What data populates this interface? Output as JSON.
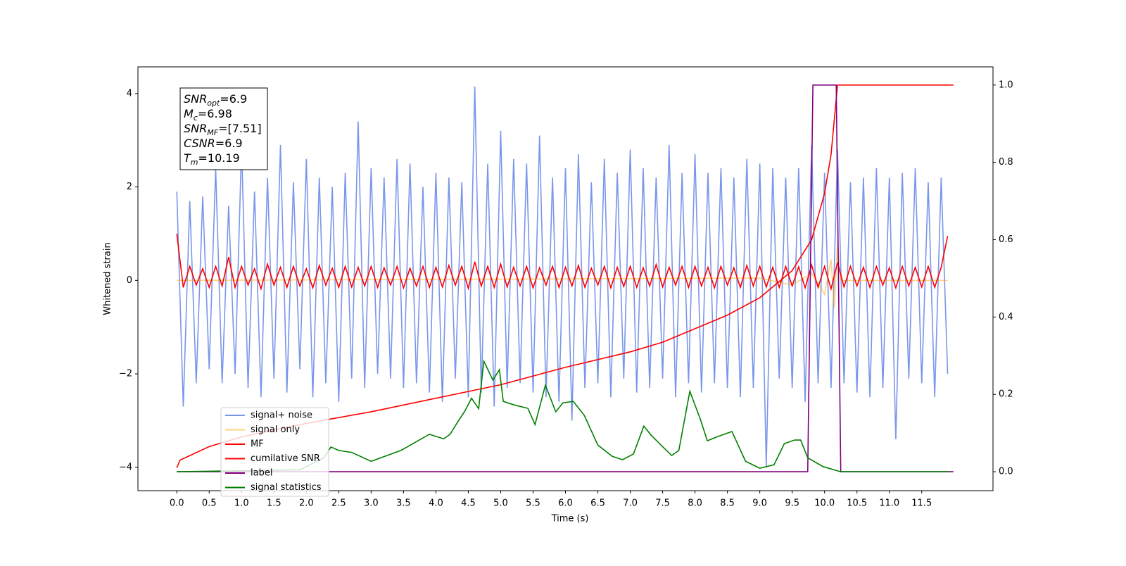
{
  "chart_data": {
    "type": "line",
    "xlabel": "Time (s)",
    "ylabel": "Whitened strain",
    "xlim": [
      -0.6,
      12.6
    ],
    "ylim": [
      -4.5,
      4.57
    ],
    "y2lim": [
      -0.049,
      1.047
    ],
    "xticks": [
      {
        "value": 0,
        "label": "0.0"
      },
      {
        "value": 0.5,
        "label": "0.5"
      },
      {
        "value": 1,
        "label": "1.0"
      },
      {
        "value": 1.5,
        "label": "1.5"
      },
      {
        "value": 2,
        "label": "2.0"
      },
      {
        "value": 2.5,
        "label": "2.5"
      },
      {
        "value": 3,
        "label": "3.0"
      },
      {
        "value": 3.5,
        "label": "3.5"
      },
      {
        "value": 4,
        "label": "4.0"
      },
      {
        "value": 4.5,
        "label": "4.5"
      },
      {
        "value": 5,
        "label": "5.0"
      },
      {
        "value": 5.5,
        "label": "5.5"
      },
      {
        "value": 6,
        "label": "6.0"
      },
      {
        "value": 6.5,
        "label": "6.5"
      },
      {
        "value": 7,
        "label": "7.0"
      },
      {
        "value": 7.5,
        "label": "7.5"
      },
      {
        "value": 8,
        "label": "8.0"
      },
      {
        "value": 8.5,
        "label": "8.5"
      },
      {
        "value": 9,
        "label": "9.0"
      },
      {
        "value": 9.5,
        "label": "9.5"
      },
      {
        "value": 10,
        "label": "10.0"
      },
      {
        "value": 10.5,
        "label": "10.5"
      },
      {
        "value": 11,
        "label": "11.0"
      },
      {
        "value": 11.5,
        "label": "11.5"
      }
    ],
    "yticks": [
      {
        "value": -4,
        "label": "−4"
      },
      {
        "value": -2,
        "label": "−2"
      },
      0,
      2,
      4
    ],
    "y2ticks": [
      {
        "value": 0,
        "label": "0.0"
      },
      {
        "value": 0.2,
        "label": "0.2"
      },
      {
        "value": 0.4,
        "label": "0.4"
      },
      {
        "value": 0.6,
        "label": "0.6"
      },
      {
        "value": 0.8,
        "label": "0.8"
      },
      {
        "value": 1,
        "label": "1.0"
      }
    ],
    "legend": "lower left",
    "annotation": [
      {
        "base": "SNR",
        "sub": "opt",
        "text": "=6.9"
      },
      {
        "base": "M",
        "sub": "c",
        "text": "=6.98"
      },
      {
        "base": "SNR",
        "sub": "MF",
        "text": "=[7.51]"
      },
      {
        "base": "CSNR",
        "sub": null,
        "text": "=6.9"
      },
      {
        "base": "T",
        "sub": "m",
        "text": "=10.19"
      }
    ],
    "series": [
      {
        "name": "signal+ noise",
        "color": "#4169e1",
        "alpha": 0.7,
        "x": [
          0,
          0.1,
          0.2,
          0.3,
          0.4,
          0.5,
          0.6,
          0.7,
          0.8,
          0.9,
          1,
          1.1,
          1.2,
          1.3,
          1.4,
          1.5,
          1.6,
          1.7,
          1.8,
          1.9,
          2,
          2.1,
          2.2,
          2.3,
          2.4,
          2.5,
          2.6,
          2.7,
          2.8,
          2.9,
          3,
          3.1,
          3.2,
          3.3,
          3.4,
          3.5,
          3.6,
          3.7,
          3.8,
          3.9,
          4,
          4.1,
          4.2,
          4.3,
          4.4,
          4.5,
          4.6,
          4.7,
          4.8,
          4.9,
          5,
          5.1,
          5.2,
          5.3,
          5.4,
          5.5,
          5.6,
          5.7,
          5.8,
          5.9,
          6,
          6.1,
          6.2,
          6.3,
          6.4,
          6.5,
          6.6,
          6.7,
          6.8,
          6.9,
          7,
          7.1,
          7.2,
          7.3,
          7.4,
          7.5,
          7.6,
          7.7,
          7.8,
          7.9,
          8,
          8.1,
          8.2,
          8.3,
          8.4,
          8.5,
          8.6,
          8.7,
          8.8,
          8.9,
          9,
          9.1,
          9.2,
          9.3,
          9.4,
          9.5,
          9.6,
          9.7,
          9.8,
          9.9,
          10,
          10.1,
          10.2,
          10.3,
          10.4,
          10.5,
          10.6,
          10.7,
          10.8,
          10.9,
          11,
          11.1,
          11.2,
          11.3,
          11.4,
          11.5,
          11.6,
          11.7,
          11.8,
          11.9
        ],
        "values": [
          1.9,
          -2.7,
          1.7,
          -2.2,
          1.8,
          -1.9,
          2.4,
          -2.2,
          1.6,
          -2.0,
          2.9,
          -2.3,
          1.9,
          -2.5,
          2.2,
          -2.1,
          2.9,
          -2.4,
          2.1,
          -1.9,
          2.6,
          -2.5,
          2.2,
          -2.2,
          2.0,
          -2.6,
          2.3,
          -2.1,
          3.4,
          -2.3,
          2.4,
          -2.0,
          2.2,
          -2.1,
          2.6,
          -2.3,
          2.5,
          -2.2,
          2.0,
          -2.4,
          2.3,
          -2.6,
          2.2,
          -2.1,
          2.1,
          -2.5,
          4.15,
          -2.4,
          2.5,
          -2.7,
          3.2,
          -2.3,
          2.6,
          -2.2,
          2.5,
          -2.4,
          3.1,
          -2.5,
          2.2,
          -2.6,
          2.4,
          -3.0,
          2.7,
          -2.3,
          2.1,
          -2.2,
          2.6,
          -2.5,
          2.3,
          -2.1,
          2.8,
          -2.4,
          2.4,
          -2.3,
          2.2,
          -2.1,
          2.9,
          -2.5,
          2.3,
          -2.2,
          2.7,
          -2.4,
          2.3,
          -2.2,
          2.4,
          -2.3,
          2.2,
          -2.5,
          2.6,
          -2.3,
          2.5,
          -4.0,
          2.4,
          -2.1,
          2.2,
          -2.3,
          2.4,
          -2.6,
          2.9,
          -2.2,
          2.3,
          -2.3,
          2.8,
          -2.2,
          2.1,
          -2.4,
          2.2,
          -2.5,
          2.4,
          -2.3,
          2.2,
          -3.4,
          2.3,
          -2.1,
          2.4,
          -2.2,
          2.1,
          -2.5,
          2.2,
          -2.0
        ]
      },
      {
        "name": "signal only",
        "color": "#ffa500",
        "alpha": 0.5,
        "x": [
          0,
          9.0,
          9.5,
          9.8,
          10.0,
          10.1,
          10.15,
          10.2,
          10.25,
          11.9
        ],
        "values": [
          0,
          0.05,
          -0.1,
          0.15,
          -0.3,
          0.45,
          -0.6,
          0.8,
          0,
          0
        ]
      },
      {
        "name": "MF",
        "color": "#ff0000",
        "alpha": 1,
        "x": [
          0,
          0.1,
          0.2,
          0.3,
          0.4,
          0.5,
          0.6,
          0.7,
          0.8,
          0.9,
          1,
          1.1,
          1.2,
          1.3,
          1.4,
          1.5,
          1.6,
          1.7,
          1.8,
          1.9,
          2,
          2.1,
          2.2,
          2.3,
          2.4,
          2.5,
          2.6,
          2.7,
          2.8,
          2.9,
          3,
          3.1,
          3.2,
          3.3,
          3.4,
          3.5,
          3.6,
          3.7,
          3.8,
          3.9,
          4,
          4.1,
          4.2,
          4.3,
          4.4,
          4.5,
          4.6,
          4.7,
          4.8,
          4.9,
          5,
          5.1,
          5.2,
          5.3,
          5.4,
          5.5,
          5.6,
          5.7,
          5.8,
          5.9,
          6,
          6.1,
          6.2,
          6.3,
          6.4,
          6.5,
          6.6,
          6.7,
          6.8,
          6.9,
          7,
          7.1,
          7.2,
          7.3,
          7.4,
          7.5,
          7.6,
          7.7,
          7.8,
          7.9,
          8,
          8.1,
          8.2,
          8.3,
          8.4,
          8.5,
          8.6,
          8.7,
          8.8,
          8.9,
          9,
          9.1,
          9.2,
          9.3,
          9.4,
          9.5,
          9.6,
          9.7,
          9.8,
          9.9,
          10,
          10.1,
          10.2,
          10.3,
          10.4,
          10.5,
          10.6,
          10.7,
          10.8,
          10.9,
          11,
          11.1,
          11.2,
          11.3,
          11.4,
          11.5,
          11.6,
          11.7,
          11.8,
          11.9
        ],
        "values": [
          1.0,
          -0.15,
          0.3,
          -0.1,
          0.25,
          -0.15,
          0.3,
          -0.12,
          0.5,
          -0.15,
          0.3,
          -0.1,
          0.25,
          -0.18,
          0.35,
          -0.1,
          0.28,
          -0.15,
          0.3,
          -0.12,
          0.25,
          -0.16,
          0.32,
          -0.1,
          0.26,
          -0.15,
          0.3,
          -0.14,
          0.28,
          -0.12,
          0.3,
          -0.15,
          0.27,
          -0.1,
          0.3,
          -0.16,
          0.26,
          -0.12,
          0.3,
          -0.15,
          0.28,
          -0.14,
          0.32,
          -0.1,
          0.3,
          -0.17,
          0.4,
          -0.12,
          0.3,
          -0.15,
          0.35,
          -0.14,
          0.28,
          -0.12,
          0.3,
          -0.16,
          0.27,
          -0.1,
          0.3,
          -0.15,
          0.28,
          -0.12,
          0.32,
          -0.15,
          0.26,
          -0.1,
          0.3,
          -0.16,
          0.28,
          -0.13,
          0.3,
          -0.15,
          0.27,
          -0.12,
          0.34,
          -0.14,
          0.28,
          -0.1,
          0.3,
          -0.15,
          0.3,
          -0.12,
          0.28,
          -0.16,
          0.3,
          -0.1,
          0.27,
          -0.15,
          0.32,
          -0.12,
          0.3,
          -0.14,
          0.28,
          -0.15,
          0.3,
          -0.12,
          0.29,
          -0.16,
          0.33,
          -0.15,
          0.3,
          -0.18,
          0.38,
          -0.14,
          0.3,
          -0.12,
          0.28,
          -0.15,
          0.3,
          -0.1,
          0.27,
          -0.16,
          0.3,
          -0.12,
          0.28,
          -0.14,
          0.3,
          -0.15,
          0.28,
          0.95
        ]
      },
      {
        "name": "cumilative SNR",
        "color": "#ff0000",
        "alpha": 1,
        "axis": "y2",
        "x": [
          0,
          0.05,
          0.5,
          1,
          2,
          3,
          4,
          5,
          6,
          7,
          7.5,
          8,
          8.5,
          9,
          9.5,
          9.8,
          10,
          10.1,
          10.2,
          11.99
        ],
        "values": [
          0.01,
          0.03,
          0.065,
          0.09,
          0.125,
          0.155,
          0.19,
          0.225,
          0.27,
          0.31,
          0.335,
          0.37,
          0.405,
          0.45,
          0.52,
          0.6,
          0.72,
          0.82,
          1.0,
          1.0
        ]
      },
      {
        "name": "label",
        "color": "#800080",
        "alpha": 1,
        "axis": "y2",
        "x": [
          0,
          9.74,
          9.82,
          10.18,
          10.25,
          11.99
        ],
        "values": [
          0,
          0,
          1,
          1,
          0,
          0
        ]
      },
      {
        "name": "signal statistics",
        "color": "#008000",
        "alpha": 1,
        "axis": "y2",
        "x": [
          0,
          1.9,
          2.27,
          2.38,
          2.5,
          2.7,
          3.0,
          3.46,
          3.9,
          4.12,
          4.22,
          4.33,
          4.44,
          4.55,
          4.66,
          4.74,
          4.88,
          4.98,
          5.04,
          5.2,
          5.42,
          5.53,
          5.69,
          5.85,
          5.96,
          6.12,
          6.29,
          6.5,
          6.72,
          6.88,
          7.05,
          7.21,
          7.32,
          7.48,
          7.64,
          7.75,
          7.92,
          8.08,
          8.19,
          8.35,
          8.57,
          8.78,
          9.0,
          9.22,
          9.38,
          9.54,
          9.63,
          9.74,
          9.98,
          10.25,
          11.93
        ],
        "values": [
          0,
          0.005,
          0.036,
          0.064,
          0.055,
          0.05,
          0.027,
          0.055,
          0.097,
          0.085,
          0.097,
          0.127,
          0.155,
          0.19,
          0.163,
          0.286,
          0.237,
          0.264,
          0.182,
          0.173,
          0.164,
          0.122,
          0.224,
          0.155,
          0.178,
          0.182,
          0.146,
          0.069,
          0.04,
          0.031,
          0.046,
          0.118,
          0.095,
          0.068,
          0.042,
          0.055,
          0.208,
          0.137,
          0.08,
          0.091,
          0.104,
          0.027,
          0.009,
          0.018,
          0.073,
          0.082,
          0.082,
          0.036,
          0.013,
          0,
          0
        ]
      }
    ]
  }
}
